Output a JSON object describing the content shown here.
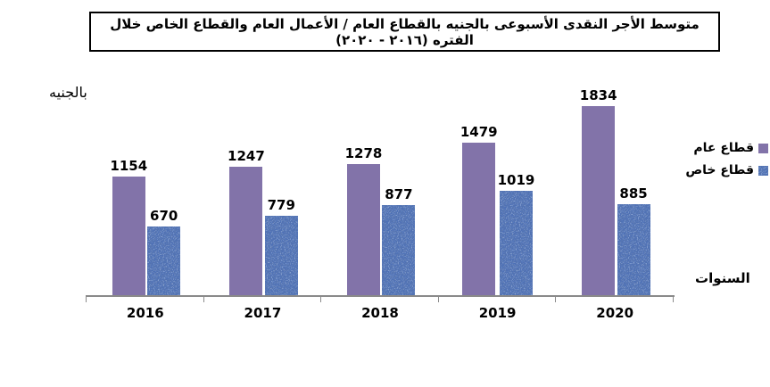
{
  "page": {
    "title": "متوسط الأجر النقدى الأسبوعى بالجنيه بالقطاع العام / الأعمال العام والقطاع الخاص خلال الفتره (٢٠١٦ - ٢٠٢٠)"
  },
  "chart_data": {
    "type": "bar",
    "title": "متوسط الأجر النقدى الأسبوعى بالجنيه بالقطاع العام / الأعمال العام والقطاع الخاص خلال الفتره (٢٠١٦ - ٢٠٢٠)",
    "categories": [
      "2016",
      "2017",
      "2018",
      "2019",
      "2020"
    ],
    "series": [
      {
        "name": "قطاع عام",
        "color": "#8273a9",
        "pattern": "solid",
        "values": [
          1154,
          1247,
          1278,
          1479,
          1834
        ]
      },
      {
        "name": "قطاع خاص",
        "color": "#4c70b8",
        "pattern": "denim",
        "values": [
          670,
          779,
          877,
          1019,
          885
        ]
      }
    ],
    "ylabel": "بالجنيه",
    "xlabel": "السنوات",
    "ylim": [
      0,
      2000
    ],
    "grid": false,
    "legend_position": "right",
    "data_labels": true
  },
  "colors": {
    "public_sector": "#8273a9",
    "private_sector_base": "#4c70b8",
    "axis": "#8a8a8a",
    "text": "#000000"
  }
}
